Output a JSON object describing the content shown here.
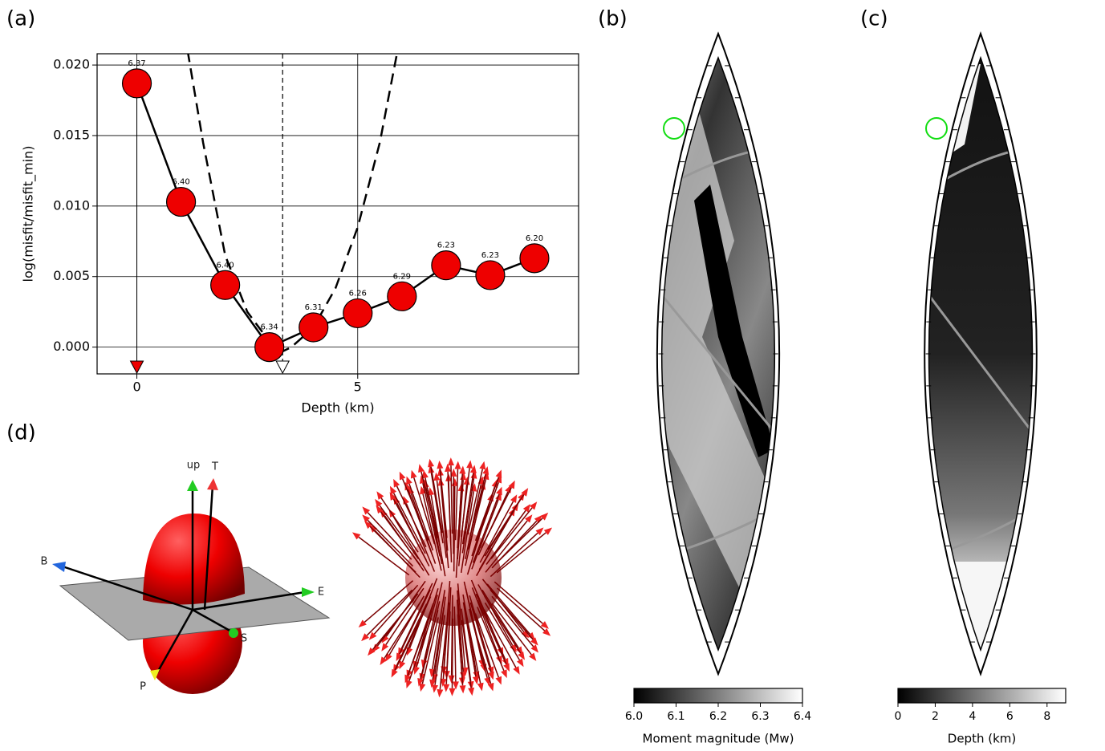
{
  "chart_data": [
    {
      "type": "line",
      "panel_label": "(a)",
      "xlabel": "Depth (km)",
      "ylabel": "log(misfit/misfit_min)",
      "xlim": [
        -0.9,
        10.0
      ],
      "xticks": [
        0,
        5
      ],
      "ylim": [
        -0.0019,
        0.0208
      ],
      "yticks": [
        {
          "value": 0,
          "label": "0.000"
        },
        {
          "value": 0.005,
          "label": "0.005"
        },
        {
          "value": 0.01,
          "label": "0.010"
        },
        {
          "value": 0.015,
          "label": "0.015"
        },
        {
          "value": 0.02,
          "label": "0.020"
        }
      ],
      "grid": true,
      "series": [
        {
          "style": "solid-markers",
          "color": "#ee0000",
          "x": [
            0,
            1,
            2,
            3,
            4,
            5,
            6,
            7,
            8,
            9
          ],
          "values": [
            0.0187,
            0.0103,
            0.0044,
            0.0,
            0.0014,
            0.0024,
            0.0036,
            0.0058,
            0.0051,
            0.0063
          ],
          "point_labels": [
            "6.37",
            "6.40",
            "6.40",
            "6.34",
            "6.31",
            "6.26",
            "6.29",
            "6.23",
            "6.23",
            "6.20"
          ]
        },
        {
          "style": "dashed",
          "color": "#000000",
          "x": [
            1.15,
            1.5,
            2,
            2.5,
            3,
            3.3,
            3.5,
            4,
            4.5,
            5,
            5.5,
            5.9
          ],
          "values": [
            0.021,
            0.0145,
            0.0065,
            0.0025,
            0.0004,
            -0.0003,
            0.0,
            0.0014,
            0.0042,
            0.0085,
            0.0145,
            0.021
          ]
        }
      ],
      "vline": 3.3,
      "markers": [
        {
          "x": 0,
          "color": "#ee0000"
        },
        {
          "x": 3.3,
          "color": "#ffffff"
        }
      ]
    },
    {
      "type": "colorbar",
      "panel_label": "(b)",
      "xlabel": "Moment magnitude (Mw)",
      "xlim": [
        6.0,
        6.4
      ],
      "xticks": [
        {
          "value": 6.0,
          "label": "6.0"
        },
        6.1,
        6.2,
        6.3,
        {
          "value": 6.4,
          "label": "6.4"
        }
      ],
      "colormap": [
        "#000000",
        "#ffffff"
      ]
    },
    {
      "type": "colorbar",
      "panel_label": "(c)",
      "xlabel": "Depth (km)",
      "xlim": [
        0,
        9
      ],
      "xticks": [
        0,
        2,
        4,
        6,
        8
      ],
      "colormap": [
        "#000000",
        "#ffffff"
      ]
    }
  ],
  "diagram": {
    "panel_label": "(d)",
    "axis_labels": [
      "up",
      "T",
      "B",
      "E",
      "S",
      "P"
    ]
  }
}
